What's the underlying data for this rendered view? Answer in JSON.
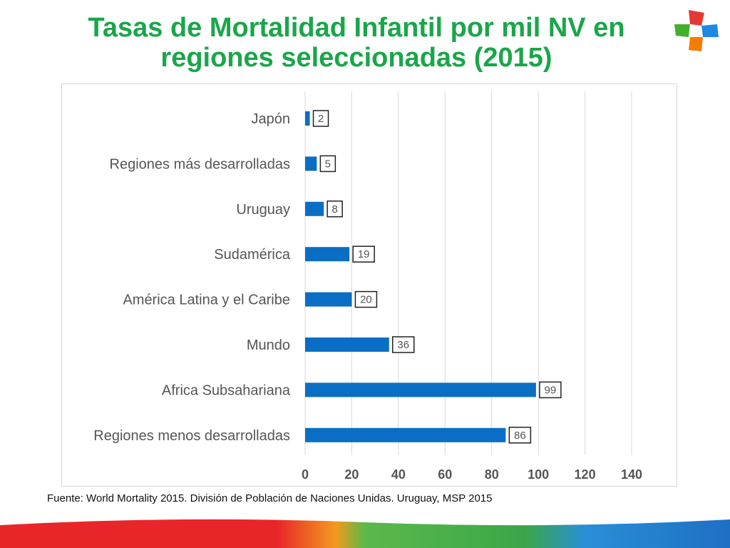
{
  "title": "Tasas de Mortalidad Infantil por mil NV en regiones seleccionadas (2015)",
  "source": "Fuente: World Mortality 2015. División de Población de Naciones Unidas. Uruguay, MSP 2015",
  "colors": {
    "title": "#1aa64a",
    "bar": "#0a6ec4",
    "grid": "#d9d9d9",
    "label": "#555555"
  },
  "chart_data": {
    "type": "bar",
    "orientation": "horizontal",
    "title": "Tasas de Mortalidad Infantil por mil NV en regiones seleccionadas (2015)",
    "categories": [
      "Japón",
      "Regiones más desarrolladas",
      "Uruguay",
      "Sudamérica",
      "América Latina y el Caribe",
      "Mundo",
      "Africa Subsahariana",
      "Regiones menos desarrolladas"
    ],
    "values": [
      2,
      5,
      8,
      19,
      20,
      36,
      99,
      86
    ],
    "xlim": [
      0,
      140
    ],
    "xticks": [
      0,
      20,
      40,
      60,
      80,
      100,
      120,
      140
    ],
    "xlabel": "",
    "ylabel": "",
    "grid": true,
    "legend": "none"
  }
}
